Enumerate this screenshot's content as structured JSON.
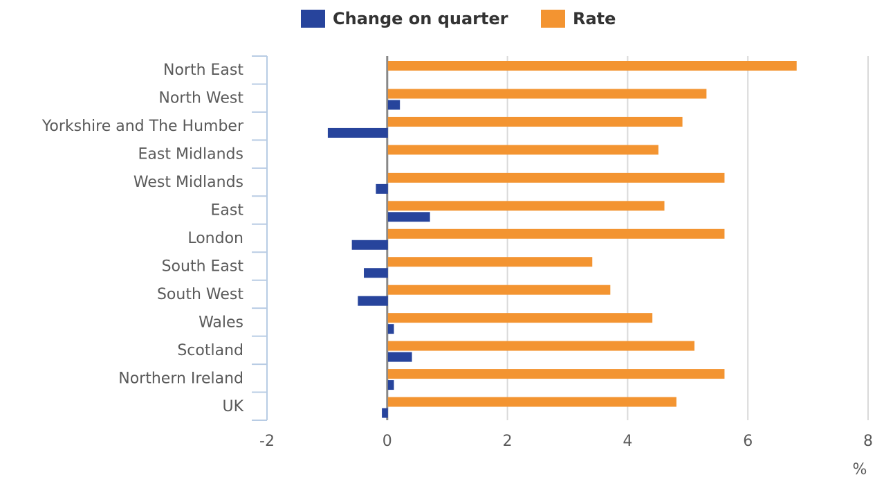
{
  "chart_data": {
    "type": "bar",
    "orientation": "horizontal",
    "categories": [
      "North East",
      "North West",
      "Yorkshire and The Humber",
      "East Midlands",
      "West Midlands",
      "East",
      "London",
      "South East",
      "South West",
      "Wales",
      "Scotland",
      "Northern Ireland",
      "UK"
    ],
    "series": [
      {
        "name": "Change on quarter",
        "color": "#27449c",
        "values": [
          0,
          0.2,
          -1.0,
          0,
          -0.2,
          0.7,
          -0.6,
          -0.4,
          -0.5,
          0.1,
          0.4,
          0.1,
          -0.1
        ]
      },
      {
        "name": "Rate",
        "color": "#f39431",
        "values": [
          6.8,
          5.3,
          4.9,
          4.5,
          5.6,
          4.6,
          5.6,
          3.4,
          3.7,
          4.4,
          5.1,
          5.6,
          4.8
        ]
      }
    ],
    "x_label": "%",
    "xlim": [
      -2,
      8
    ],
    "xticks": [
      -2,
      0,
      2,
      4,
      6,
      8
    ],
    "grid": true,
    "legend": "top"
  }
}
